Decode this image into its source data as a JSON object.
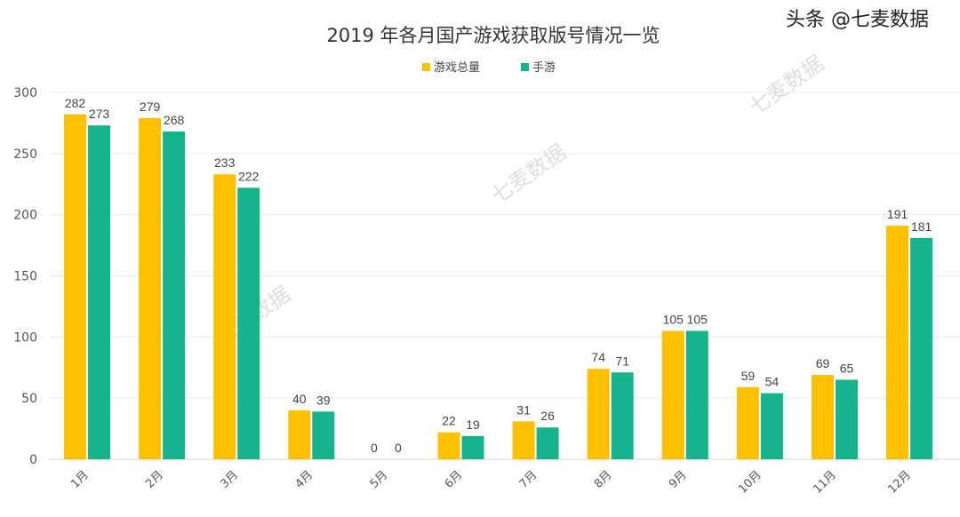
{
  "chart_data": {
    "type": "bar",
    "title": "2019 年各月国产游戏获取版号情况一览",
    "categories": [
      "1月",
      "2月",
      "3月",
      "4月",
      "5月",
      "6月",
      "7月",
      "8月",
      "9月",
      "10月",
      "11月",
      "12月"
    ],
    "series": [
      {
        "name": "游戏总量",
        "color": "#FFC000",
        "values": [
          282,
          279,
          233,
          40,
          0,
          22,
          31,
          74,
          105,
          59,
          69,
          191
        ]
      },
      {
        "name": "手游",
        "color": "#17B38C",
        "values": [
          273,
          268,
          222,
          39,
          0,
          19,
          26,
          71,
          105,
          54,
          65,
          181
        ]
      }
    ],
    "ylim": [
      0,
      300
    ],
    "yticks": [
      0,
      50,
      100,
      150,
      200,
      250,
      300
    ],
    "grid": true,
    "legend": "top-center",
    "xlabel": "",
    "ylabel": ""
  },
  "watermark": {
    "text": "七麦数据",
    "badge": "头条 @七麦数据"
  }
}
